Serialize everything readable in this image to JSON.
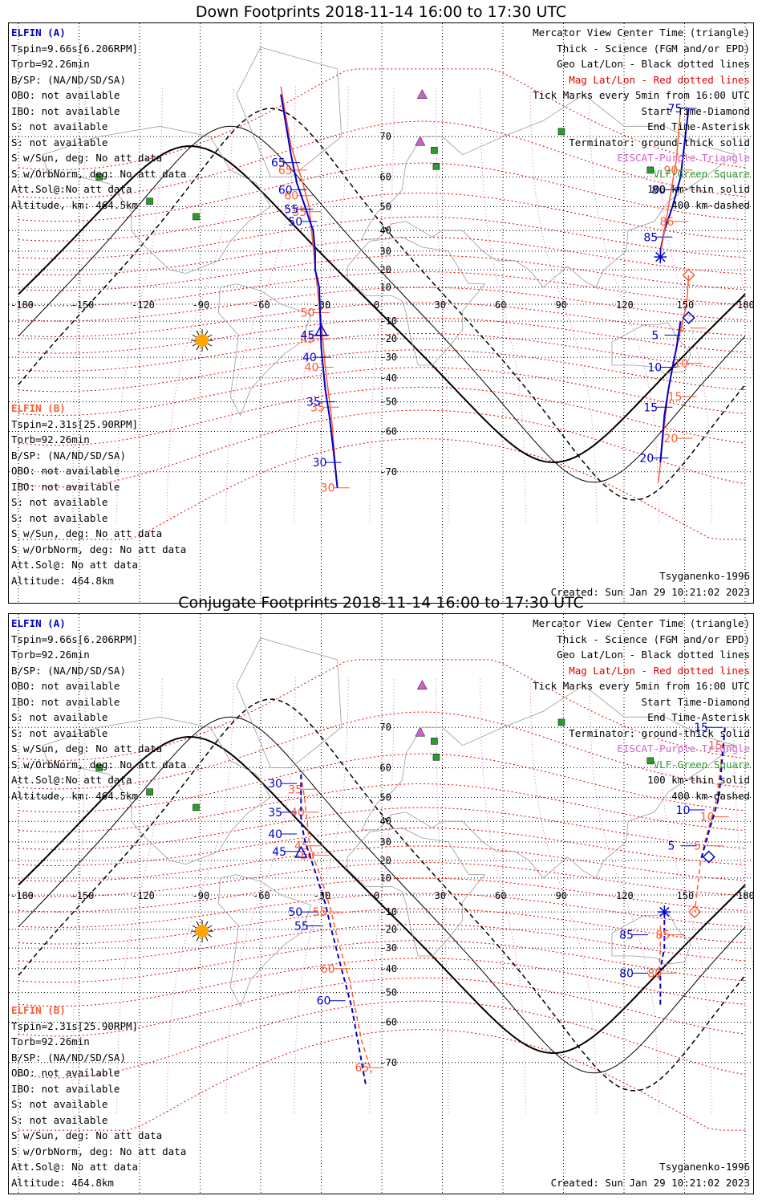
{
  "titles": {
    "down": "Down Footprints 2018-11-14 16:00 to 17:30 UTC",
    "conjugate": "Conjugate Footprints 2018-11-14 16:00 to 17:30 UTC"
  },
  "info_a": {
    "header": "ELFIN (A)",
    "lines": [
      "Tspin=9.66s[6.206RPM]",
      "Torb=92.26min",
      "B/SP: (NA/ND/SD/SA)",
      "OBO: not available",
      "IBO: not available",
      "S: not available",
      "S: not available",
      "S w/Sun, deg: No att data",
      "S w/OrbNorm, deg: No att data",
      "Att.Sol@:No att data",
      "Altitude, km: 464.5km"
    ]
  },
  "info_b": {
    "header": "ELFIN (B)",
    "lines": [
      "Tspin=2.31s[25.90RPM]",
      "Torb=92.26min",
      "B/SP: (NA/ND/SD/SA)",
      "OBO: not available",
      "IBO: not available",
      "S: not available",
      "S: not available",
      "S w/Sun, deg: No att data",
      "S w/OrbNorm, deg: No att data",
      "Att.Sol@: No att data",
      "Altitude: 464.8km"
    ]
  },
  "legend": {
    "l1": "Mercator View Center Time (triangle)",
    "l2": "Thick - Science (FGM and/or EPD)",
    "l3": "Geo Lat/Lon - Black dotted lines",
    "l4": "Mag Lat/Lon - Red dotted lines",
    "l5": "Tick Marks every 5min from 16:00 UTC",
    "l6": "Start Time-Diamond",
    "l7": "End Time-Asterisk",
    "l8": "Terminator: ground-thick solid",
    "l9": "EISCAT-Purple Triangle",
    "l10": "VLF-Green Square",
    "l11": "100 km-thin solid",
    "l12": "400 km-dashed"
  },
  "footer": {
    "model": "Tsyganenko-1996",
    "created": "Created: Sun Jan 29 10:21:02 2023"
  },
  "map": {
    "projection": "Mercator",
    "lon_ticks": [
      "-180",
      "-150",
      "-120",
      "-90",
      "-60",
      "-30",
      "0",
      "30",
      "60",
      "90",
      "120",
      "150",
      "180"
    ],
    "lat_ticks": [
      "70",
      "60",
      "50",
      "40",
      "30",
      "20",
      "10",
      "0",
      "-10",
      "-20",
      "-30",
      "-40",
      "-50",
      "-60",
      "-70"
    ],
    "colors": {
      "elfin_a": "#0000c8",
      "elfin_b": "#ff5a32",
      "geo_grid": "#000000",
      "mag_grid": "#e00000",
      "mag_lon": "#d070d0",
      "eiscat": "#d060d0",
      "vlf": "#2e9a2e",
      "sun": "#ffa500"
    }
  },
  "chart_data": [
    {
      "type": "map",
      "name": "down",
      "elfin_a_track_a": {
        "points": [
          [
            -50,
            77
          ],
          [
            -45,
            66
          ],
          [
            -42,
            58
          ],
          [
            -38,
            50
          ],
          [
            -36,
            45
          ],
          [
            -34,
            40
          ],
          [
            -33,
            30
          ],
          [
            -33,
            20
          ],
          [
            -31,
            10
          ]
        ],
        "labels": [
          {
            "t": "65",
            "lon": -44.5,
            "lat": 64
          },
          {
            "t": "60",
            "lon": -41,
            "lat": 56
          },
          {
            "t": "55",
            "lon": -38,
            "lat": 49
          },
          {
            "t": "50",
            "lon": -36,
            "lat": 44
          }
        ]
      },
      "elfin_a_track_b": {
        "points": [
          [
            -31,
            10
          ],
          [
            -30,
            -25
          ],
          [
            -28,
            -45
          ],
          [
            -26,
            -55
          ],
          [
            -24,
            -65
          ],
          [
            -22,
            -73
          ]
        ],
        "labels": [
          {
            "t": "45",
            "lon": -30,
            "lat": -18
          },
          {
            "t": "40",
            "lon": -29,
            "lat": -30
          },
          {
            "t": "35",
            "lon": -27,
            "lat": -50
          },
          {
            "t": "30",
            "lon": -24,
            "lat": -68
          }
        ]
      },
      "elfin_b_track_a": {
        "points": [
          [
            -50,
            78
          ],
          [
            -45,
            68
          ],
          [
            -40,
            60
          ],
          [
            -36,
            50
          ],
          [
            -32,
            10
          ],
          [
            -30,
            -10
          ],
          [
            -28,
            -35
          ],
          [
            -25,
            -55
          ],
          [
            -22,
            -73
          ]
        ],
        "labels": [
          {
            "t": "65",
            "lon": -41,
            "lat": 62
          },
          {
            "t": "60",
            "lon": -38,
            "lat": 54
          },
          {
            "t": "55",
            "lon": -34,
            "lat": 48
          },
          {
            "t": "50",
            "lon": -30,
            "lat": -5
          },
          {
            "t": "45",
            "lon": -30,
            "lat": -20
          },
          {
            "t": "40",
            "lon": -28,
            "lat": -35
          },
          {
            "t": "35",
            "lon": -25,
            "lat": -52
          },
          {
            "t": "30",
            "lon": -20,
            "lat": -73
          }
        ]
      },
      "elfin_a_track_c": {
        "points": [
          [
            148,
            -10
          ],
          [
            146,
            -25
          ],
          [
            144,
            -35
          ],
          [
            142,
            -45
          ],
          [
            140,
            -55
          ],
          [
            138,
            -68
          ]
        ],
        "labels": [
          {
            "t": "5",
            "lon": 144,
            "lat": -18
          },
          {
            "t": "10",
            "lon": 142,
            "lat": -35
          },
          {
            "t": "15",
            "lon": 140,
            "lat": -52
          },
          {
            "t": "20",
            "lon": 138,
            "lat": -67
          }
        ]
      },
      "elfin_b_track_b": {
        "points": [
          [
            152,
            17
          ],
          [
            151,
            0
          ],
          [
            148,
            -15
          ],
          [
            145,
            -30
          ],
          [
            142,
            -45
          ],
          [
            140,
            -58
          ],
          [
            137,
            -72
          ]
        ],
        "labels": [
          {
            "t": "5",
            "lon": 157,
            "lat": -14
          },
          {
            "t": "10",
            "lon": 155,
            "lat": -33
          },
          {
            "t": "15",
            "lon": 152,
            "lat": -48
          },
          {
            "t": "20",
            "lon": 150,
            "lat": -62
          }
        ]
      },
      "elfin_a_track_d": {
        "points": [
          [
            152,
            75
          ],
          [
            148,
            60
          ],
          [
            144,
            50
          ],
          [
            140,
            40
          ],
          [
            138,
            30
          ]
        ],
        "labels": [
          {
            "t": "75",
            "lon": 152,
            "lat": 75
          },
          {
            "t": "80",
            "lon": 144,
            "lat": 56
          },
          {
            "t": "85",
            "lon": 140,
            "lat": 37
          }
        ]
      },
      "elfin_b_track_c": {
        "points": [
          [
            148,
            75
          ],
          [
            146,
            65
          ],
          [
            142,
            50
          ],
          [
            140,
            40
          ],
          [
            138,
            28
          ]
        ],
        "labels": [
          {
            "t": "90",
            "lon": 150,
            "lat": 62
          },
          {
            "t": "86",
            "lon": 148,
            "lat": 44
          }
        ]
      },
      "view_center_lon": -30,
      "view_center_lat": -16,
      "start_a": [
        152,
        -8
      ],
      "end_a": [
        138,
        27
      ],
      "start_b": [
        152,
        17
      ]
    },
    {
      "type": "map",
      "name": "conjugate",
      "elfin_a_track_a": {
        "points": [
          [
            -40,
            58
          ],
          [
            -40,
            50
          ],
          [
            -40,
            40
          ],
          [
            -38,
            30
          ],
          [
            -36,
            24
          ],
          [
            -32,
            10
          ],
          [
            -28,
            -5
          ],
          [
            -25,
            -20
          ],
          [
            -20,
            -40
          ],
          [
            -15,
            -55
          ],
          [
            -8,
            -74
          ]
        ],
        "labels": [
          {
            "t": "30",
            "lon": -46,
            "lat": 55
          },
          {
            "t": "35",
            "lon": -46,
            "lat": 44
          },
          {
            "t": "40",
            "lon": -46,
            "lat": 34
          },
          {
            "t": "45",
            "lon": -44,
            "lat": 25
          },
          {
            "t": "50",
            "lon": -36,
            "lat": -10
          },
          {
            "t": "55",
            "lon": -33,
            "lat": -18
          },
          {
            "t": "60",
            "lon": -22,
            "lat": -53
          }
        ]
      },
      "elfin_b_track_a": {
        "points": [
          [
            -40,
            58
          ],
          [
            -38,
            48
          ],
          [
            -37,
            40
          ],
          [
            -36,
            30
          ],
          [
            -34,
            22
          ],
          [
            -30,
            10
          ],
          [
            -25,
            -10
          ],
          [
            -22,
            -25
          ],
          [
            -16,
            -45
          ],
          [
            -10,
            -65
          ],
          [
            -5,
            -72
          ]
        ],
        "labels": [
          {
            "t": "35",
            "lon": -36,
            "lat": 53
          },
          {
            "t": "40",
            "lon": -35,
            "lat": 44
          },
          {
            "t": "45",
            "lon": -33,
            "lat": 28
          },
          {
            "t": "50",
            "lon": -30,
            "lat": 23
          },
          {
            "t": "55",
            "lon": -24,
            "lat": -10
          },
          {
            "t": "60",
            "lon": -20,
            "lat": -40
          },
          {
            "t": "65",
            "lon": -3,
            "lat": -71
          }
        ]
      },
      "elfin_a_track_c": {
        "points": [
          [
            170,
            70
          ],
          [
            167,
            50
          ],
          [
            162,
            35
          ],
          [
            158,
            20
          ]
        ],
        "labels": [
          {
            "t": "15",
            "lon": 165,
            "lat": 70
          },
          {
            "t": "10",
            "lon": 156,
            "lat": 45
          },
          {
            "t": "5",
            "lon": 152,
            "lat": 28
          }
        ]
      },
      "elfin_b_track_b": {
        "points": [
          [
            170,
            70
          ],
          [
            166,
            50
          ],
          [
            160,
            30
          ],
          [
            158,
            20
          ],
          [
            155,
            -10
          ]
        ],
        "labels": [
          {
            "t": "15",
            "lon": 172,
            "lat": 66
          },
          {
            "t": "10",
            "lon": 168,
            "lat": 42
          },
          {
            "t": "5",
            "lon": 165,
            "lat": 28
          }
        ]
      },
      "elfin_a_track_d": {
        "points": [
          [
            140,
            -10
          ],
          [
            140,
            -30
          ],
          [
            138,
            -40
          ],
          [
            138,
            -55
          ]
        ],
        "labels": [
          {
            "t": "85",
            "lon": 128,
            "lat": -23
          },
          {
            "t": "80",
            "lon": 128,
            "lat": -42
          }
        ]
      },
      "elfin_b_track_c": {
        "points": [
          [
            138,
            -18
          ],
          [
            138,
            -30
          ],
          [
            137,
            -45
          ]
        ],
        "labels": [
          {
            "t": "85",
            "lon": 146,
            "lat": -23
          },
          {
            "t": "80",
            "lon": 142,
            "lat": -42
          }
        ]
      },
      "view_center_lon": -40,
      "view_center_lat": 24,
      "start_a": [
        162,
        22
      ],
      "end_a": [
        140,
        -10
      ],
      "start_b": [
        155,
        -10
      ]
    }
  ]
}
